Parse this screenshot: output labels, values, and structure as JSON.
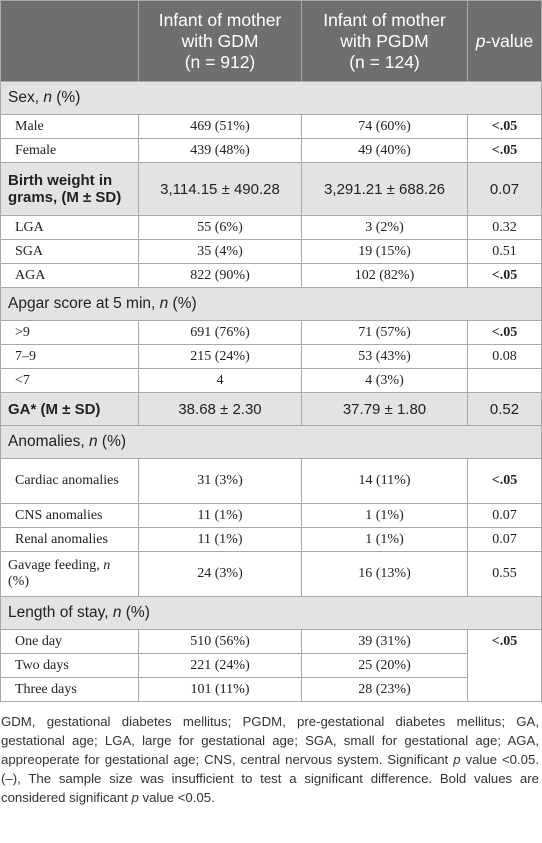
{
  "header": {
    "col1": "",
    "col2_line1": "Infant of mother",
    "col2_line2": "with GDM",
    "col2_n": "(n = 912)",
    "col3_line1": "Infant of mother",
    "col3_line2": "with PGDM",
    "col3_n": "(n = 124)",
    "col4_p": "p",
    "col4_rest": "-value"
  },
  "sex": {
    "title": "Sex, ",
    "title_it": "n",
    "title_tail": " (%)",
    "male": {
      "label": "Male",
      "gdm": "469 (51%)",
      "pgdm": "74 (60%)",
      "p": "<.05"
    },
    "female": {
      "label": "Female",
      "gdm": "439 (48%)",
      "pgdm": "49 (40%)",
      "p": "<.05"
    }
  },
  "birth_weight": {
    "label": "Birth weight in grams, (M ± SD)",
    "gdm": "3,114.15 ± 490.28",
    "pgdm": "3,291.21 ± 688.26",
    "p": "0.07"
  },
  "weight_class": {
    "lga": {
      "label": "LGA",
      "gdm": "55 (6%)",
      "pgdm": "3 (2%)",
      "p": "0.32"
    },
    "sga": {
      "label": "SGA",
      "gdm": "35 (4%)",
      "pgdm": "19 (15%)",
      "p": "0.51"
    },
    "aga": {
      "label": "AGA",
      "gdm": "822 (90%)",
      "pgdm": "102 (82%)",
      "p": "<.05"
    }
  },
  "apgar": {
    "title": "Apgar score at 5 min, ",
    "title_it": "n",
    "title_tail": " (%)",
    "gt9": {
      "label": ">9",
      "gdm": "691 (76%)",
      "pgdm": "71 (57%)",
      "p": "<.05"
    },
    "r79": {
      "label": "7–9",
      "gdm": "215 (24%)",
      "pgdm": "53 (43%)",
      "p": "0.08"
    },
    "lt7": {
      "label": "<7",
      "gdm": "4",
      "pgdm": "4 (3%)",
      "p": ""
    }
  },
  "ga": {
    "label": "GA* (M ± SD)",
    "gdm": "38.68 ± 2.30",
    "pgdm": "37.79 ± 1.80",
    "p": "0.52"
  },
  "anomalies": {
    "title": "Anomalies, ",
    "title_it": "n",
    "title_tail": " (%)",
    "cardiac": {
      "label": "Cardiac anomalies",
      "gdm": "31 (3%)",
      "pgdm": "14 (11%)",
      "p": "<.05"
    },
    "cns": {
      "label": "CNS anomalies",
      "gdm": "11 (1%)",
      "pgdm": "1 (1%)",
      "p": "0.07"
    },
    "renal": {
      "label": "Renal anomalies",
      "gdm": "11 (1%)",
      "pgdm": "1 (1%)",
      "p": "0.07"
    }
  },
  "gavage": {
    "label_a": "Gavage feeding, ",
    "label_it": "n",
    "label_tail": " (%)",
    "gdm": "24 (3%)",
    "pgdm": "16 (13%)",
    "p": "0.55"
  },
  "stay": {
    "title": "Length of stay, ",
    "title_it": "n",
    "title_tail": " (%)",
    "p": "<.05",
    "one": {
      "label": "One day",
      "gdm": "510 (56%)",
      "pgdm": "39 (31%)"
    },
    "two": {
      "label": "Two days",
      "gdm": "221 (24%)",
      "pgdm": "25 (20%)"
    },
    "three": {
      "label": "Three days",
      "gdm": "101 (11%)",
      "pgdm": "28 (23%)"
    }
  },
  "footnote": {
    "part1": "GDM, gestational diabetes mellitus; PGDM, pre-gestational diabetes mellitus; GA, gestational age; LGA, large for gestational age; SGA, small for gestational age; AGA, appreoperate for gestational age; CNS, central nervous system. Significant ",
    "p1": "p",
    "part2": " value <0.05. (–), The sample size was insufficient to test a significant difference. Bold values are considered significant ",
    "p2": "p",
    "part3": " value <0.05."
  }
}
